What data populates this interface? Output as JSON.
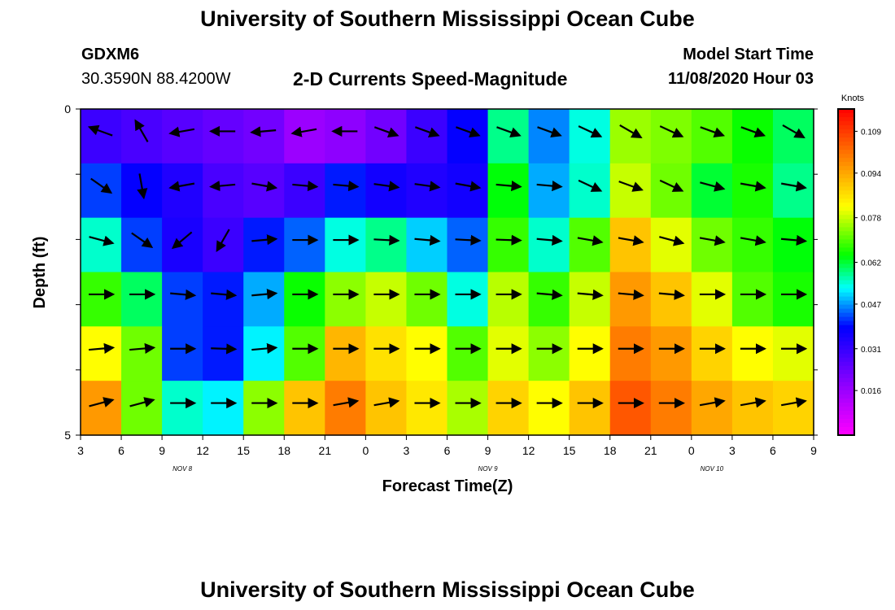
{
  "page": {
    "title": "University of Southern Mississippi Ocean Cube",
    "footer_title": "University of Southern Mississippi Ocean Cube",
    "station_id": "GDXM6",
    "station_location": "30.3590N 88.4200W",
    "subtitle": "2-D Currents Speed-Magnitude",
    "model_start_label": "Model Start Time",
    "model_start_value": "11/08/2020 Hour 03"
  },
  "chart_data": {
    "type": "heatmap",
    "title": "2-D Currents Speed-Magnitude",
    "xlabel": "Forecast Time(Z)",
    "ylabel": "Depth (ft)",
    "ylim": [
      0,
      5
    ],
    "y_ticks": [
      "0",
      "5"
    ],
    "x_ticks": [
      "3",
      "6",
      "9",
      "12",
      "15",
      "18",
      "21",
      "0",
      "3",
      "6",
      "9",
      "12",
      "15",
      "18",
      "21",
      "0",
      "3",
      "6",
      "9"
    ],
    "date_labels": [
      {
        "label": "NOV 8",
        "tick_index": 2.5
      },
      {
        "label": "NOV 9",
        "tick_index": 10
      },
      {
        "label": "NOV 10",
        "tick_index": 15.5
      }
    ],
    "colorbar": {
      "label": "Knots",
      "min": 0.0,
      "max": 0.117,
      "ticks": [
        0.016,
        0.031,
        0.047,
        0.062,
        0.078,
        0.094,
        0.109
      ],
      "tick_labels": [
        "0.016",
        "0.031",
        "0.047",
        "0.062",
        "0.078",
        "0.094",
        "0.109"
      ]
    },
    "hours": [
      3,
      6,
      9,
      12,
      15,
      18,
      21,
      24,
      27,
      30,
      33,
      36,
      39,
      42,
      45,
      48,
      51,
      54
    ],
    "layers": [
      {
        "depth_band": "0",
        "speeds": [
          0.03,
          0.028,
          0.026,
          0.024,
          0.022,
          0.016,
          0.018,
          0.022,
          0.03,
          0.038,
          0.058,
          0.046,
          0.054,
          0.075,
          0.073,
          0.07,
          0.065,
          0.06
        ]
      },
      {
        "depth_band": "1",
        "speeds": [
          0.042,
          0.038,
          0.034,
          0.028,
          0.026,
          0.03,
          0.04,
          0.036,
          0.034,
          0.036,
          0.064,
          0.048,
          0.055,
          0.078,
          0.072,
          0.062,
          0.066,
          0.058
        ]
      },
      {
        "depth_band": "2",
        "speeds": [
          0.055,
          0.042,
          0.035,
          0.03,
          0.04,
          0.044,
          0.054,
          0.058,
          0.05,
          0.044,
          0.068,
          0.055,
          0.07,
          0.09,
          0.08,
          0.072,
          0.068,
          0.064
        ]
      },
      {
        "depth_band": "3",
        "speeds": [
          0.068,
          0.06,
          0.042,
          0.04,
          0.048,
          0.065,
          0.074,
          0.078,
          0.072,
          0.054,
          0.077,
          0.068,
          0.078,
          0.096,
          0.09,
          0.08,
          0.07,
          0.066
        ]
      },
      {
        "depth_band": "4",
        "speeds": [
          0.082,
          0.072,
          0.042,
          0.04,
          0.052,
          0.07,
          0.092,
          0.086,
          0.082,
          0.07,
          0.08,
          0.074,
          0.082,
          0.1,
          0.096,
          0.088,
          0.082,
          0.08
        ]
      },
      {
        "depth_band": "5",
        "speeds": [
          0.096,
          0.072,
          0.055,
          0.052,
          0.074,
          0.09,
          0.1,
          0.09,
          0.085,
          0.076,
          0.088,
          0.082,
          0.09,
          0.105,
          0.1,
          0.094,
          0.09,
          0.088
        ]
      }
    ],
    "vector_directions_deg": [
      [
        200,
        240,
        170,
        180,
        175,
        170,
        180,
        20,
        20,
        20,
        20,
        20,
        25,
        30,
        25,
        20,
        20,
        30
      ],
      [
        35,
        80,
        170,
        175,
        10,
        5,
        5,
        8,
        8,
        10,
        5,
        5,
        25,
        20,
        25,
        15,
        10,
        10
      ],
      [
        15,
        35,
        140,
        120,
        355,
        0,
        0,
        3,
        5,
        3,
        2,
        5,
        10,
        10,
        15,
        10,
        10,
        5
      ],
      [
        0,
        0,
        5,
        5,
        355,
        0,
        0,
        0,
        0,
        0,
        0,
        5,
        5,
        5,
        5,
        0,
        0,
        0
      ],
      [
        355,
        355,
        0,
        2,
        355,
        0,
        0,
        0,
        0,
        0,
        0,
        0,
        0,
        0,
        0,
        0,
        0,
        0
      ],
      [
        345,
        345,
        0,
        0,
        0,
        0,
        350,
        350,
        0,
        0,
        0,
        0,
        0,
        0,
        0,
        350,
        350,
        350
      ]
    ]
  }
}
